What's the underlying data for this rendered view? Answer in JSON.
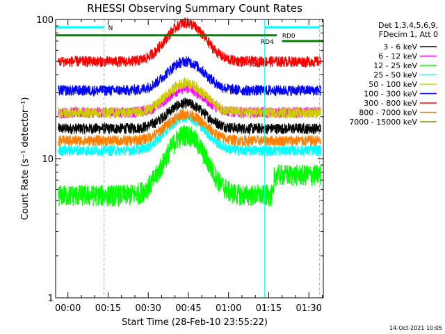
{
  "chart_data": {
    "type": "line",
    "title": "RHESSI Observing Summary Count Rates",
    "xlabel": "Start Time (28-Feb-10 23:55:22)",
    "ylabel": "Count Rate (s⁻¹ detector⁻¹)",
    "y_scale": "log",
    "ylim": [
      1,
      100
    ],
    "y_ticks": [
      {
        "value": 1,
        "label": "1"
      },
      {
        "value": 10,
        "label": "10"
      },
      {
        "value": 100,
        "label": "100"
      }
    ],
    "xlim_minutes": [
      -4.6,
      95.4
    ],
    "x_ticks": [
      {
        "minutes": 0,
        "label": "00:00"
      },
      {
        "minutes": 15,
        "label": "00:15"
      },
      {
        "minutes": 30,
        "label": "00:30"
      },
      {
        "minutes": 45,
        "label": "00:45"
      },
      {
        "minutes": 60,
        "label": "01:00"
      },
      {
        "minutes": 75,
        "label": "01:15"
      },
      {
        "minutes": 90,
        "label": "01:30"
      }
    ],
    "legend_placement": "right, outside plot",
    "legend_header": [
      "Det 1,3,4,5,6,9,",
      "FDecim 1, Att 0"
    ],
    "series": [
      {
        "name": "3 - 6 keV",
        "color": "#000000",
        "base": 16.5,
        "peak": 25,
        "jump": 0
      },
      {
        "name": "6 - 12 keV",
        "color": "#ff00ff",
        "base": 21.5,
        "peak": 32,
        "jump": 0
      },
      {
        "name": "12 - 25 keV",
        "color": "#00ff00",
        "base": 5.5,
        "peak": 15,
        "jump": 1.4
      },
      {
        "name": "25 - 50 keV",
        "color": "#00ffff",
        "base": 11.5,
        "peak": 20,
        "jump": 0
      },
      {
        "name": "50 - 100 keV",
        "color": "#cccc00",
        "base": 21.5,
        "peak": 35,
        "jump": 0
      },
      {
        "name": "100 - 300 keV",
        "color": "#0000ff",
        "base": 31,
        "peak": 50,
        "jump": 0
      },
      {
        "name": "300 - 800 keV",
        "color": "#ff0000",
        "base": 50,
        "peak": 95,
        "jump": 0
      },
      {
        "name": "800 - 7000 keV",
        "color": "#ff8000",
        "base": 13.5,
        "peak": 21,
        "jump": 0
      },
      {
        "name": "7000 - 15000 keV",
        "color": "#888800",
        "base": 0,
        "peak": 0,
        "jump": 0
      }
    ],
    "flare_peak_minute": 44,
    "flare_width_minutes": 9,
    "annotations": [
      {
        "label": "N",
        "color": "#00ffff",
        "x_start": -4.6,
        "x_end": 13.5
      },
      {
        "label": "RD0",
        "color": "#00ffff",
        "x_start": 73.5,
        "x_end": 94
      },
      {
        "label": "RD4",
        "color": "#008000"
      }
    ],
    "saa_markers_minutes": [
      -4.6,
      13.5,
      73.5,
      94
    ],
    "attenuator_line": {
      "color": "#008000",
      "value": 77
    },
    "grid": false
  },
  "footer": {
    "timestamp": "14-Oct-2021 10:05"
  }
}
